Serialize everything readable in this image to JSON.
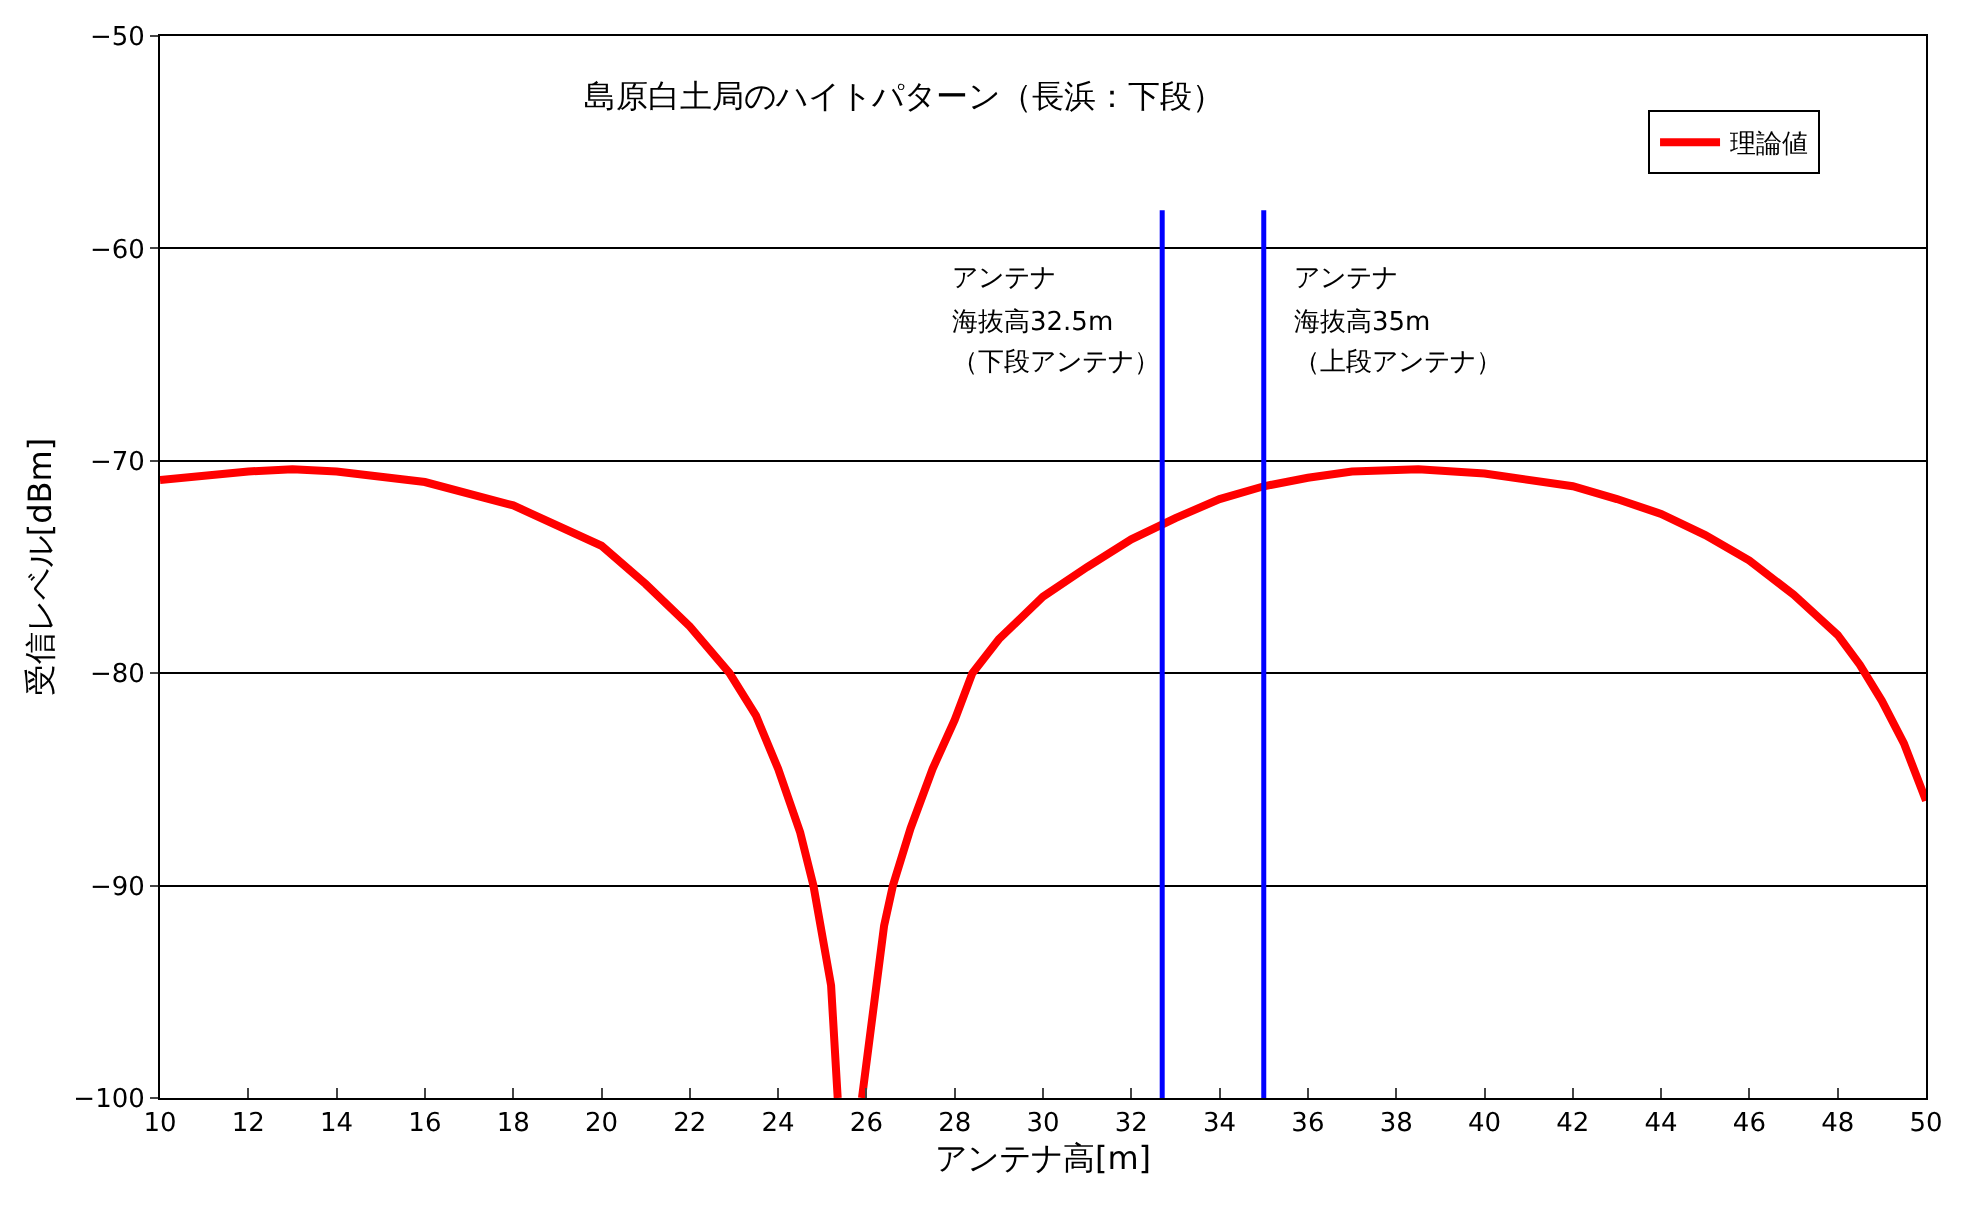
{
  "chart_data": {
    "type": "line",
    "title": "島原白土局のハイトパターン（長浜：下段）",
    "xlabel": "アンテナ高[m]",
    "ylabel": "受信レベル[dBm]",
    "xlim": [
      10,
      50
    ],
    "xticks": [
      10,
      12,
      14,
      16,
      18,
      20,
      22,
      24,
      26,
      28,
      30,
      32,
      34,
      36,
      38,
      40,
      42,
      44,
      46,
      48,
      50
    ],
    "ylim": [
      -100,
      -50
    ],
    "yticks": [
      -100,
      -90,
      -80,
      -70,
      -60,
      -50
    ],
    "grid": "y",
    "legend": "top right",
    "series": [
      {
        "name": "理論値",
        "color": "#ff0000",
        "x": [
          10,
          12,
          13,
          14,
          16,
          18,
          20,
          21,
          22,
          22.9,
          23.5,
          24,
          24.5,
          24.8,
          25.2,
          25.35,
          25.6,
          25.9,
          26.4,
          26.6,
          27,
          27.5,
          28,
          28.4,
          29,
          30,
          31,
          32,
          33,
          34,
          35,
          36,
          37,
          38.5,
          40,
          42,
          43,
          44,
          45,
          46,
          47,
          48,
          48.5,
          49,
          49.5,
          50
        ],
        "values": [
          -70.9,
          -70.5,
          -70.4,
          -70.5,
          -71.0,
          -72.1,
          -74.0,
          -75.8,
          -77.8,
          -80.0,
          -82.0,
          -84.5,
          -87.5,
          -90.0,
          -94.7,
          -100.0,
          null,
          -100.0,
          -91.9,
          -90.0,
          -87.3,
          -84.5,
          -82.2,
          -80.0,
          -78.4,
          -76.4,
          -75.0,
          -73.7,
          -72.7,
          -71.8,
          -71.2,
          -70.8,
          -70.5,
          -70.4,
          -70.6,
          -71.2,
          -71.8,
          -72.5,
          -73.5,
          -74.7,
          -76.3,
          -78.2,
          -79.6,
          -81.3,
          -83.3,
          -86.0
        ]
      },
      {
        "color": "#0000ff",
        "x": [
          32.7,
          32.7
        ],
        "values": [
          -100,
          -58.2
        ]
      },
      {
        "color": "#0000ff",
        "x": [
          35.0,
          35.0
        ],
        "values": [
          -100,
          -58.2
        ]
      }
    ],
    "annotations": [
      "アンテナ",
      "海抜高32.5m",
      "（下段アンテナ）",
      "アンテナ",
      "海抜高35m",
      "（上段アンテナ）"
    ]
  }
}
